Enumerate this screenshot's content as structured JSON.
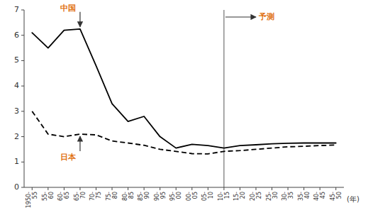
{
  "chart_data": {
    "type": "line",
    "categories": [
      "1950-\n55",
      "55-\n60",
      "60-\n65",
      "65-\n70",
      "70-\n75",
      "75-\n80",
      "80-\n85",
      "85-\n90",
      "90-\n95",
      "95-\n00",
      "00-\n05",
      "05-\n10",
      "10-\n15",
      "15-\n20",
      "20-\n25",
      "25-\n30",
      "30-\n35",
      "35-\n40",
      "40-\n45",
      "45-\n50"
    ],
    "series": [
      {
        "name": "中国",
        "color": "#000000",
        "line_style": "solid",
        "values": [
          6.1,
          5.5,
          6.2,
          6.25,
          4.8,
          3.3,
          2.6,
          2.8,
          2.0,
          1.55,
          1.7,
          1.65,
          1.55,
          1.65,
          1.68,
          1.72,
          1.74,
          1.75,
          1.75,
          1.75
        ]
      },
      {
        "name": "日本",
        "color": "#000000",
        "line_style": "dashed",
        "values": [
          3.0,
          2.1,
          2.0,
          2.1,
          2.07,
          1.83,
          1.75,
          1.66,
          1.5,
          1.42,
          1.33,
          1.32,
          1.42,
          1.45,
          1.5,
          1.55,
          1.6,
          1.62,
          1.65,
          1.67
        ]
      }
    ],
    "annotations": [
      {
        "text": "予測",
        "x": 12,
        "color": "#e07010"
      }
    ],
    "x_label": "(年)",
    "ylim": [
      0,
      7
    ],
    "yticks": [
      0,
      1,
      2,
      3,
      4,
      5,
      6,
      7
    ],
    "grid": false
  }
}
